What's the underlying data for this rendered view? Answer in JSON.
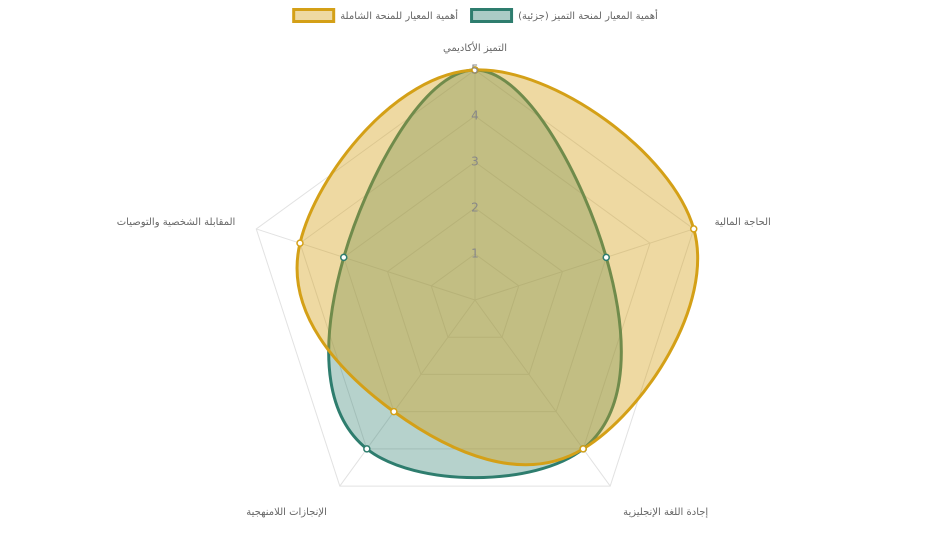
{
  "chart_data": {
    "type": "radar",
    "categories": [
      "التميز الأكاديمي",
      "الحاجة المالية",
      "إجادة اللغة الإنجليزية",
      "الإنجازات اللامنهجية",
      "المقابلة الشخصية والتوصيات"
    ],
    "series": [
      {
        "name": "أهمية المعيار للمنحة الشاملة",
        "color": "#d4a017",
        "values": [
          5,
          5,
          4,
          3,
          4
        ]
      },
      {
        "name": "أهمية المعيار لمنحة التميز (جزئية)",
        "color": "#2e7d6e",
        "values": [
          5,
          3,
          4,
          4,
          3
        ]
      }
    ],
    "rlim": [
      0,
      5
    ],
    "rticks": [
      1,
      2,
      3,
      4,
      5
    ],
    "grid": true,
    "legend": "top"
  }
}
